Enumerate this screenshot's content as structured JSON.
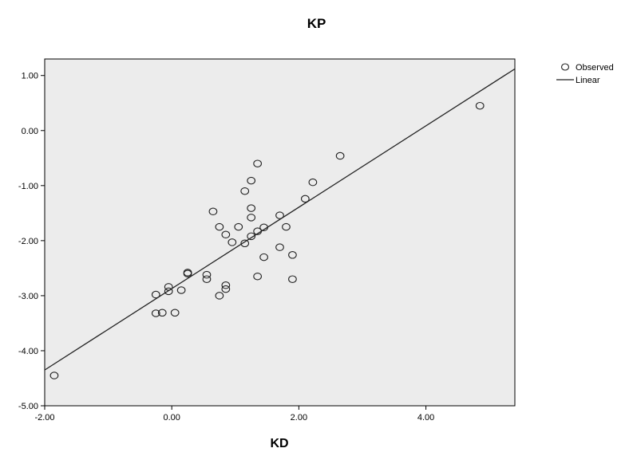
{
  "chart_data": {
    "type": "scatter",
    "title": "KP",
    "xlabel": "KD",
    "ylabel": "",
    "xlim": [
      -2.0,
      5.4
    ],
    "ylim": [
      -5.0,
      1.3
    ],
    "x_ticks": [
      -2.0,
      0.0,
      2.0,
      4.0
    ],
    "y_ticks": [
      1.0,
      0.0,
      -1.0,
      -2.0,
      -3.0,
      -4.0,
      -5.0
    ],
    "x_tick_labels": [
      "-2.00",
      "0.00",
      "2.00",
      "4.00"
    ],
    "y_tick_labels": [
      "1.00",
      "0.00",
      "-1.00",
      "-2.00",
      "-3.00",
      "-4.00",
      "-5.00"
    ],
    "grid": false,
    "legend_position": "top-right",
    "plot_background": "#ececec",
    "series": [
      {
        "name": "Observed",
        "kind": "scatter",
        "marker": "open-circle",
        "points": [
          [
            -1.85,
            -4.45
          ],
          [
            -0.25,
            -2.98
          ],
          [
            -0.25,
            -3.32
          ],
          [
            -0.15,
            -3.31
          ],
          [
            -0.05,
            -2.84
          ],
          [
            -0.05,
            -2.92
          ],
          [
            0.05,
            -3.31
          ],
          [
            0.15,
            -2.9
          ],
          [
            0.25,
            -2.58
          ],
          [
            0.25,
            -2.6
          ],
          [
            0.55,
            -2.62
          ],
          [
            0.55,
            -2.7
          ],
          [
            0.65,
            -1.47
          ],
          [
            0.75,
            -1.75
          ],
          [
            0.75,
            -3.0
          ],
          [
            0.85,
            -2.81
          ],
          [
            0.85,
            -2.88
          ],
          [
            0.85,
            -1.89
          ],
          [
            0.95,
            -2.03
          ],
          [
            1.05,
            -1.75
          ],
          [
            1.15,
            -1.1
          ],
          [
            1.15,
            -2.05
          ],
          [
            1.25,
            -0.91
          ],
          [
            1.25,
            -1.41
          ],
          [
            1.25,
            -1.58
          ],
          [
            1.25,
            -1.92
          ],
          [
            1.35,
            -0.6
          ],
          [
            1.35,
            -1.83
          ],
          [
            1.35,
            -2.65
          ],
          [
            1.45,
            -1.76
          ],
          [
            1.45,
            -2.3
          ],
          [
            1.7,
            -1.54
          ],
          [
            1.7,
            -2.12
          ],
          [
            1.8,
            -1.75
          ],
          [
            1.9,
            -2.26
          ],
          [
            1.9,
            -2.7
          ],
          [
            2.1,
            -1.24
          ],
          [
            2.22,
            -0.94
          ],
          [
            2.65,
            -0.46
          ],
          [
            4.85,
            0.45
          ]
        ]
      },
      {
        "name": "Linear",
        "kind": "line",
        "points": [
          [
            -2.0,
            -4.35
          ],
          [
            5.4,
            1.12
          ]
        ]
      }
    ]
  }
}
